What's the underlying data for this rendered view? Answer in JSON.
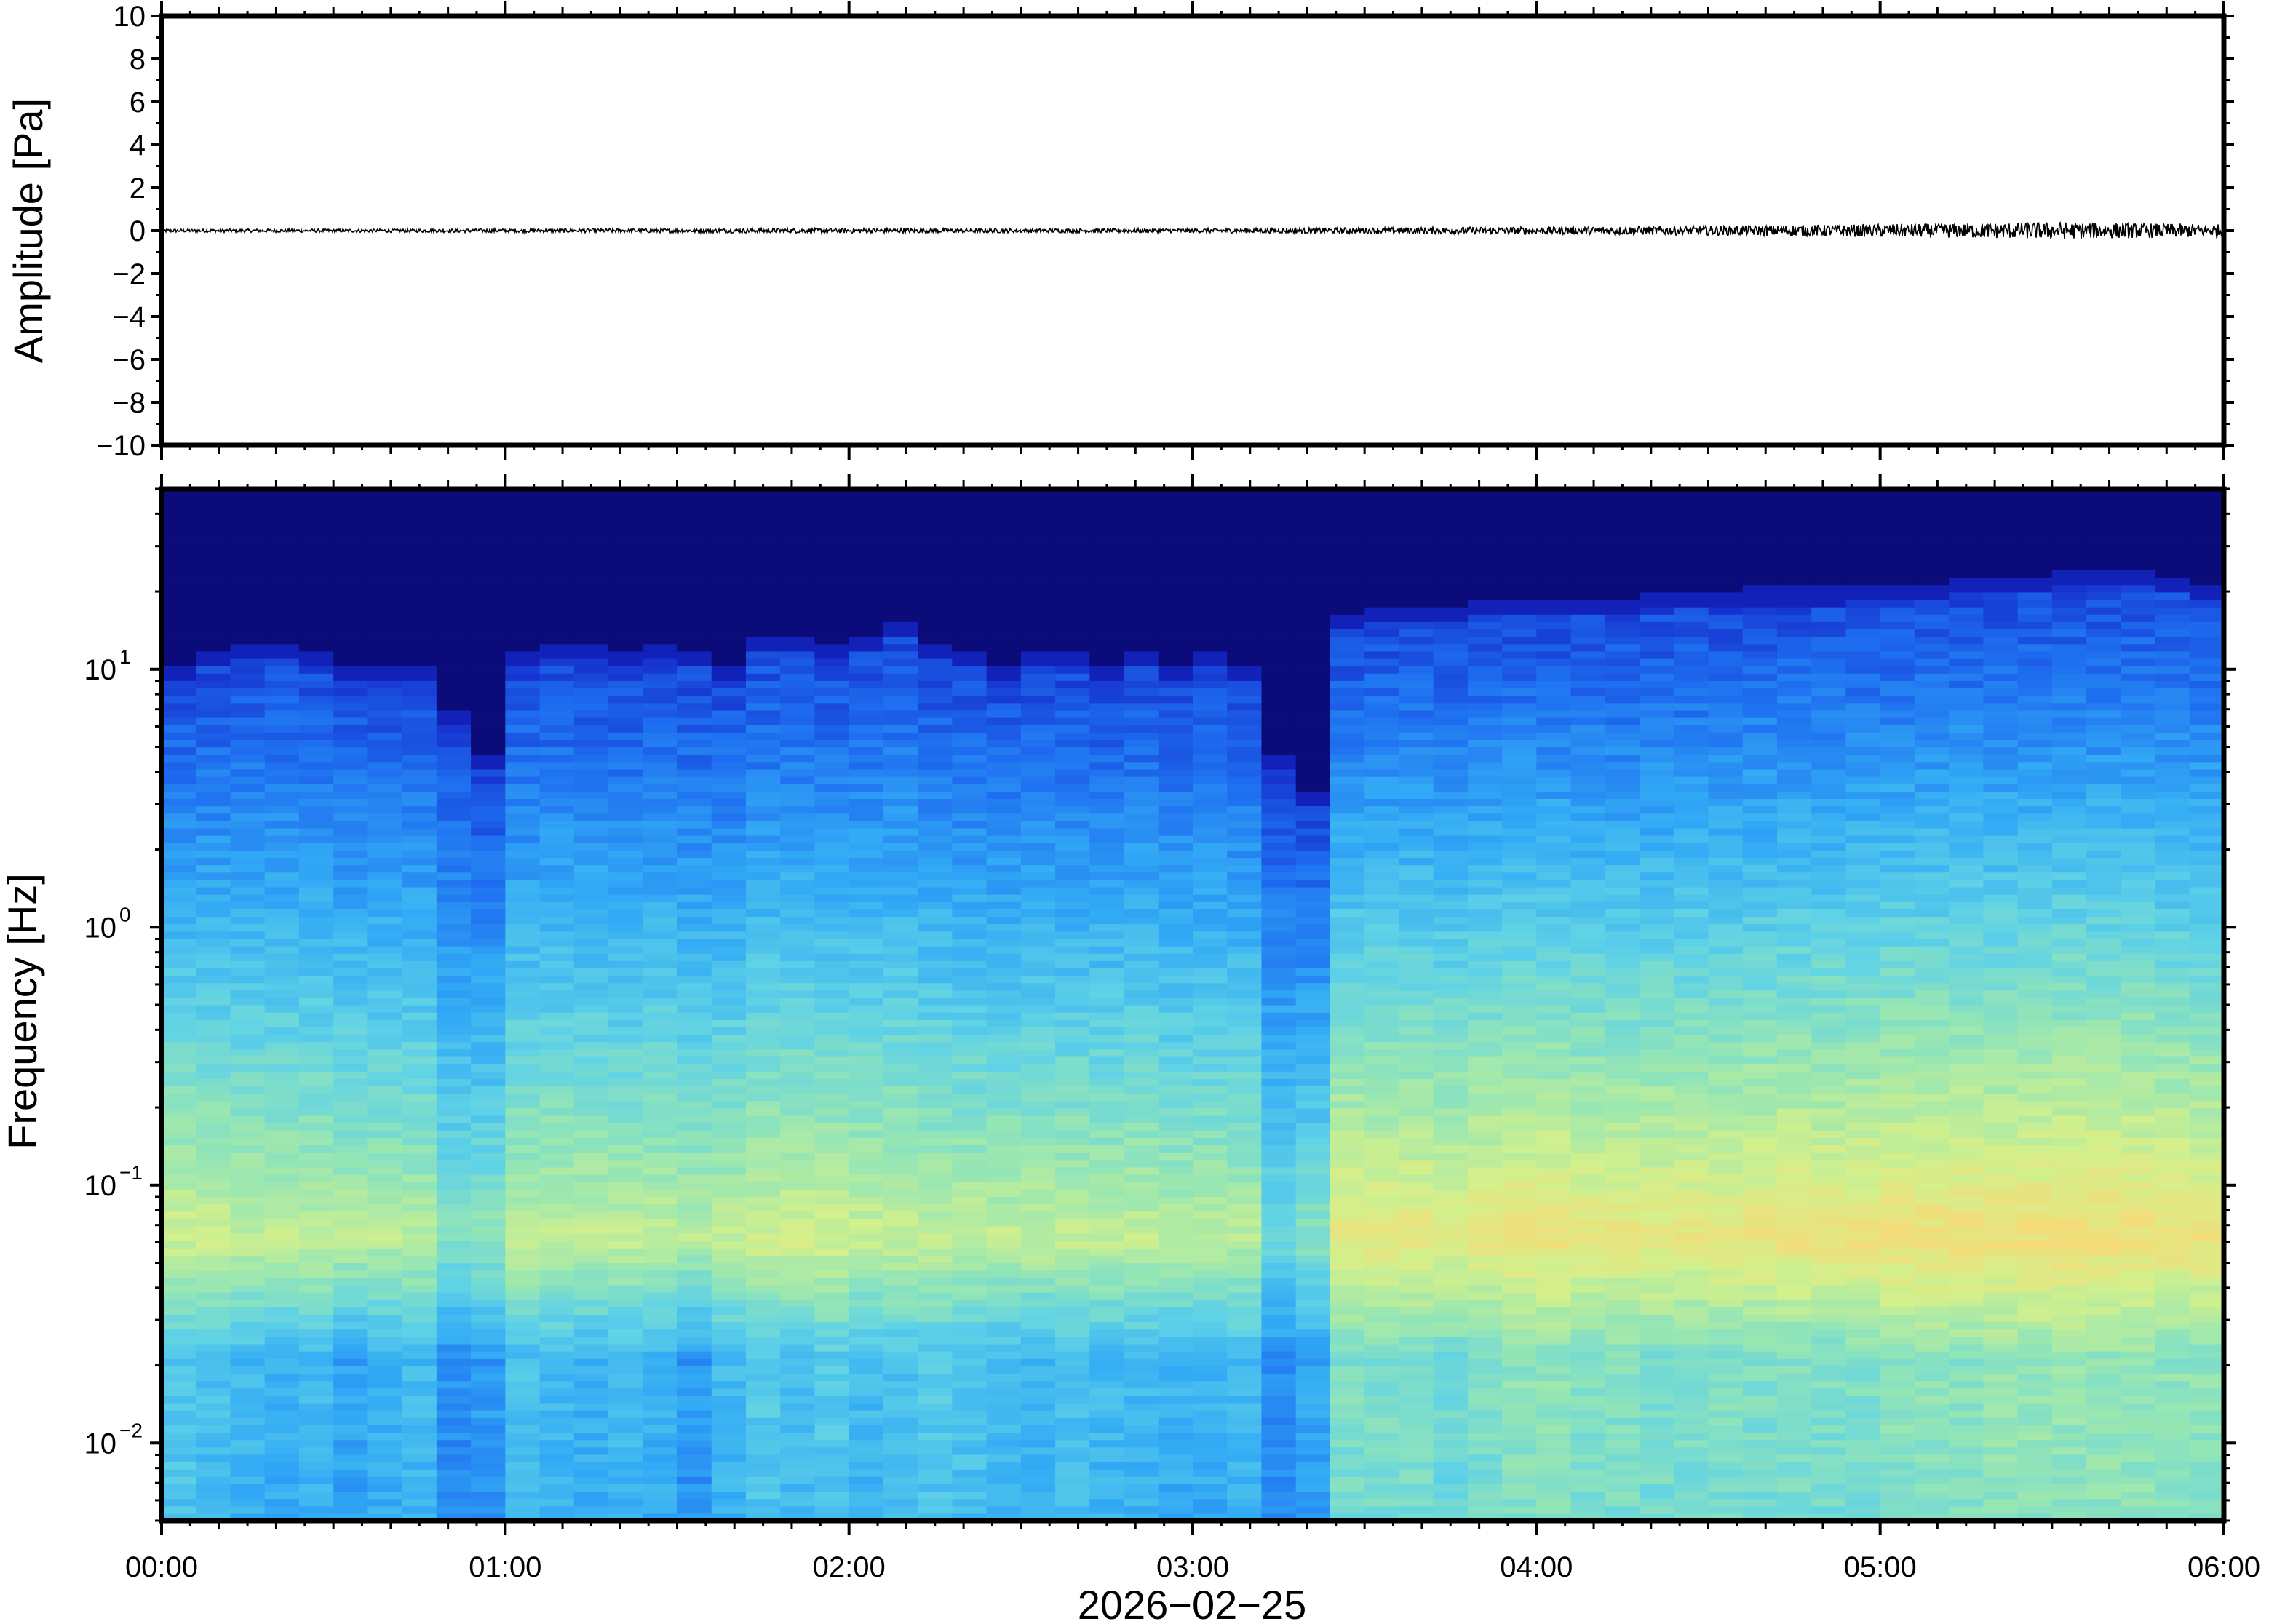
{
  "chart_data": [
    {
      "type": "line",
      "panel": "waveform",
      "ylabel": "Amplitude [Pa]",
      "ylim": [
        -10,
        10
      ],
      "yticks": [
        10,
        8,
        6,
        4,
        2,
        0,
        -2,
        -4,
        -6,
        -8,
        -10
      ],
      "ytick_labels": [
        "10",
        "8",
        "6",
        "4",
        "2",
        "0",
        "−2",
        "−4",
        "−6",
        "−8",
        "−10"
      ],
      "x_range_hours": [
        0,
        6
      ],
      "series": [
        {
          "color": "#000000",
          "x_hours": [
            0,
            0.5,
            1,
            1.5,
            2,
            2.5,
            3,
            3.5,
            4,
            4.5,
            5,
            5.5,
            6
          ],
          "envelope_pa": [
            0.08,
            0.08,
            0.09,
            0.1,
            0.12,
            0.1,
            0.1,
            0.15,
            0.18,
            0.22,
            0.3,
            0.4,
            0.3
          ]
        }
      ]
    },
    {
      "type": "heatmap",
      "panel": "spectrogram",
      "ylabel": "Frequency [Hz]",
      "xlabel": "2026−02−25",
      "yscale": "log",
      "ylim": [
        0.005,
        50
      ],
      "yticks": [
        {
          "value": 10,
          "base": "10",
          "exp": "1"
        },
        {
          "value": 1,
          "base": "10",
          "exp": "0"
        },
        {
          "value": 0.1,
          "base": "10",
          "exp": "−1"
        },
        {
          "value": 0.01,
          "base": "10",
          "exp": "−2"
        }
      ],
      "xticks": [
        {
          "hours": 0,
          "label": "00:00"
        },
        {
          "hours": 1,
          "label": "01:00"
        },
        {
          "hours": 2,
          "label": "02:00"
        },
        {
          "hours": 3,
          "label": "03:00"
        },
        {
          "hours": 4,
          "label": "04:00"
        },
        {
          "hours": 5,
          "label": "05:00"
        },
        {
          "hours": 6,
          "label": "06:00"
        }
      ],
      "colormap": [
        "#0b0b7a",
        "#1428c8",
        "#1e6ef0",
        "#32aaf5",
        "#5fd2e6",
        "#96e6b4",
        "#d2f08c",
        "#f5dc78",
        "#f5b45a"
      ],
      "colormap_range": [
        0,
        1
      ],
      "columns_hours": [
        0.05,
        0.15,
        0.25,
        0.35,
        0.45,
        0.55,
        0.65,
        0.75,
        0.85,
        0.95,
        1.05,
        1.15,
        1.25,
        1.35,
        1.45,
        1.55,
        1.65,
        1.75,
        1.85,
        1.95,
        2.05,
        2.15,
        2.25,
        2.35,
        2.45,
        2.55,
        2.65,
        2.75,
        2.85,
        2.95,
        3.05,
        3.15,
        3.25,
        3.35,
        3.45,
        3.55,
        3.65,
        3.75,
        3.85,
        3.95,
        4.05,
        4.15,
        4.25,
        4.35,
        4.45,
        4.55,
        4.65,
        4.75,
        4.85,
        4.95,
        5.05,
        5.15,
        5.25,
        5.35,
        5.45,
        5.55,
        5.65,
        5.75,
        5.85,
        5.95
      ],
      "upper_cutoff_hz": [
        9,
        10,
        11,
        11,
        10,
        9,
        9,
        9,
        6,
        4,
        10,
        11,
        11,
        10,
        11,
        10,
        9,
        12,
        12,
        11,
        12,
        13,
        11,
        10,
        9,
        10,
        10,
        9,
        10,
        9,
        10,
        9,
        4,
        3,
        14,
        15,
        15,
        15,
        16,
        16,
        16,
        16,
        16,
        17,
        17,
        17,
        18,
        18,
        18,
        19,
        19,
        19,
        20,
        20,
        20,
        21,
        21,
        21,
        20,
        19
      ],
      "low_band_level": [
        0.45,
        0.42,
        0.4,
        0.38,
        0.4,
        0.35,
        0.38,
        0.4,
        0.3,
        0.33,
        0.42,
        0.4,
        0.38,
        0.4,
        0.38,
        0.32,
        0.4,
        0.45,
        0.42,
        0.45,
        0.4,
        0.42,
        0.45,
        0.43,
        0.4,
        0.38,
        0.42,
        0.4,
        0.4,
        0.38,
        0.38,
        0.4,
        0.3,
        0.35,
        0.55,
        0.55,
        0.55,
        0.52,
        0.55,
        0.58,
        0.58,
        0.55,
        0.56,
        0.55,
        0.55,
        0.56,
        0.55,
        0.56,
        0.55,
        0.55,
        0.58,
        0.58,
        0.58,
        0.6,
        0.6,
        0.6,
        0.6,
        0.6,
        0.58,
        0.58
      ],
      "mid_band_level": [
        0.75,
        0.74,
        0.72,
        0.72,
        0.72,
        0.7,
        0.7,
        0.7,
        0.6,
        0.62,
        0.72,
        0.72,
        0.72,
        0.72,
        0.72,
        0.7,
        0.72,
        0.75,
        0.76,
        0.76,
        0.74,
        0.74,
        0.72,
        0.72,
        0.72,
        0.72,
        0.72,
        0.72,
        0.72,
        0.7,
        0.7,
        0.7,
        0.55,
        0.6,
        0.82,
        0.82,
        0.82,
        0.8,
        0.82,
        0.84,
        0.84,
        0.82,
        0.82,
        0.82,
        0.82,
        0.82,
        0.83,
        0.84,
        0.84,
        0.84,
        0.86,
        0.86,
        0.86,
        0.86,
        0.86,
        0.87,
        0.86,
        0.86,
        0.84,
        0.84
      ]
    }
  ]
}
